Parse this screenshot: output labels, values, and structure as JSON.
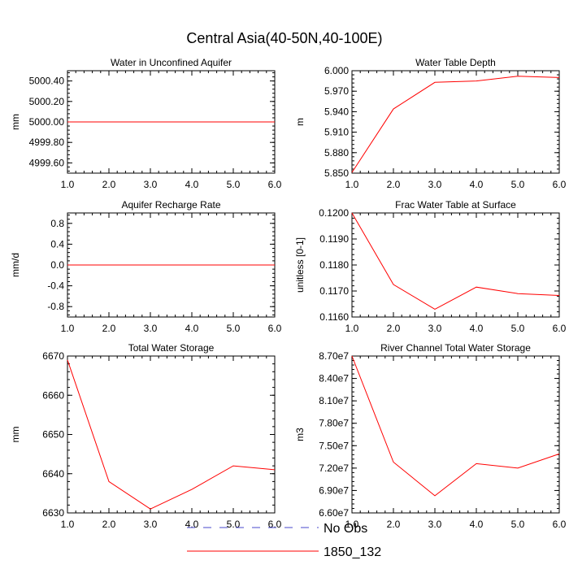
{
  "figure_title": "Central Asia(40-50N,40-100E)",
  "legend": {
    "entries": [
      {
        "label": "No Obs",
        "color": "#4a4acd",
        "dashed": true
      },
      {
        "label": "1850_132",
        "color": "#ff0000",
        "dashed": false
      }
    ]
  },
  "chart_data": [
    {
      "type": "line",
      "title": "Water in Unconfined Aquifer",
      "ylabel": "mm",
      "xlabel": "",
      "x": [
        1,
        2,
        3,
        4,
        5,
        6
      ],
      "xlim": [
        1,
        6
      ],
      "xticks": [
        "1.0",
        "2.0",
        "3.0",
        "4.0",
        "5.0",
        "6.0"
      ],
      "ylim": [
        4999.5,
        5000.5
      ],
      "yticks": [
        4999.6,
        4999.8,
        5000.0,
        5000.2,
        5000.4
      ],
      "ytick_labels": [
        "4999.60",
        "4999.80",
        "5000.00",
        "5000.20",
        "5000.40"
      ],
      "series": [
        {
          "name": "1850_132",
          "color": "#ff0000",
          "values": [
            5000,
            5000,
            5000,
            5000,
            5000,
            5000
          ]
        }
      ]
    },
    {
      "type": "line",
      "title": "Water Table Depth",
      "ylabel": "m",
      "xlabel": "",
      "x": [
        1,
        2,
        3,
        4,
        5,
        6
      ],
      "xlim": [
        1,
        6
      ],
      "xticks": [
        "1.0",
        "2.0",
        "3.0",
        "4.0",
        "5.0",
        "6.0"
      ],
      "ylim": [
        5.85,
        6.0
      ],
      "yticks": [
        5.85,
        5.88,
        5.91,
        5.94,
        5.97,
        6.0
      ],
      "ytick_labels": [
        "5.850",
        "5.880",
        "5.910",
        "5.940",
        "5.970",
        "6.000"
      ],
      "series": [
        {
          "name": "1850_132",
          "color": "#ff0000",
          "values": [
            5.851,
            5.944,
            5.983,
            5.985,
            5.992,
            5.99
          ]
        }
      ]
    },
    {
      "type": "line",
      "title": "Aquifer Recharge Rate",
      "ylabel": "mm/d",
      "xlabel": "",
      "x": [
        1,
        2,
        3,
        4,
        5,
        6
      ],
      "xlim": [
        1,
        6
      ],
      "xticks": [
        "1.0",
        "2.0",
        "3.0",
        "4.0",
        "5.0",
        "6.0"
      ],
      "ylim": [
        -1.0,
        1.0
      ],
      "yticks": [
        -0.8,
        -0.4,
        0.0,
        0.4,
        0.8
      ],
      "ytick_labels": [
        "-0.8",
        "-0.4",
        "0.0",
        "0.4",
        "0.8"
      ],
      "series": [
        {
          "name": "1850_132",
          "color": "#ff0000",
          "values": [
            0,
            0,
            0,
            0,
            0,
            0
          ]
        }
      ]
    },
    {
      "type": "line",
      "title": "Frac Water Table at Surface",
      "ylabel": "unitless [0-1]",
      "xlabel": "",
      "x": [
        1,
        2,
        3,
        4,
        5,
        6
      ],
      "xlim": [
        1,
        6
      ],
      "xticks": [
        "1.0",
        "2.0",
        "3.0",
        "4.0",
        "5.0",
        "6.0"
      ],
      "ylim": [
        0.116,
        0.12
      ],
      "yticks": [
        0.116,
        0.117,
        0.118,
        0.119,
        0.12
      ],
      "ytick_labels": [
        "0.1160",
        "0.1170",
        "0.1180",
        "0.1190",
        "0.1200"
      ],
      "series": [
        {
          "name": "1850_132",
          "color": "#ff0000",
          "values": [
            0.12,
            0.11725,
            0.1163,
            0.11715,
            0.1169,
            0.11683
          ]
        }
      ]
    },
    {
      "type": "line",
      "title": "Total Water Storage",
      "ylabel": "mm",
      "xlabel": "",
      "x": [
        1,
        2,
        3,
        4,
        5,
        6
      ],
      "xlim": [
        1,
        6
      ],
      "xticks": [
        "1.0",
        "2.0",
        "3.0",
        "4.0",
        "5.0",
        "6.0"
      ],
      "ylim": [
        6630,
        6670
      ],
      "yticks": [
        6630,
        6640,
        6650,
        6660,
        6670
      ],
      "ytick_labels": [
        "6630",
        "6640",
        "6650",
        "6660",
        "6670"
      ],
      "series": [
        {
          "name": "1850_132",
          "color": "#ff0000",
          "values": [
            6669,
            6638,
            6631,
            6636,
            6642,
            6641
          ]
        }
      ]
    },
    {
      "type": "line",
      "title": "River Channel Total Water Storage",
      "ylabel": "m3",
      "xlabel": "",
      "x": [
        1,
        2,
        3,
        4,
        5,
        6
      ],
      "xlim": [
        1,
        6
      ],
      "xticks": [
        "1.0",
        "2.0",
        "3.0",
        "4.0",
        "5.0",
        "6.0"
      ],
      "ylim": [
        66000000,
        87000000
      ],
      "yticks": [
        66000000,
        69000000,
        72000000,
        75000000,
        78000000,
        81000000,
        84000000,
        87000000
      ],
      "ytick_labels": [
        "6.60e7",
        "6.90e7",
        "7.20e7",
        "7.50e7",
        "7.80e7",
        "8.10e7",
        "8.40e7",
        "8.70e7"
      ],
      "series": [
        {
          "name": "1850_132",
          "color": "#ff0000",
          "values": [
            87000000,
            72800000,
            68300000,
            72600000,
            72000000,
            73900000
          ]
        }
      ]
    }
  ]
}
